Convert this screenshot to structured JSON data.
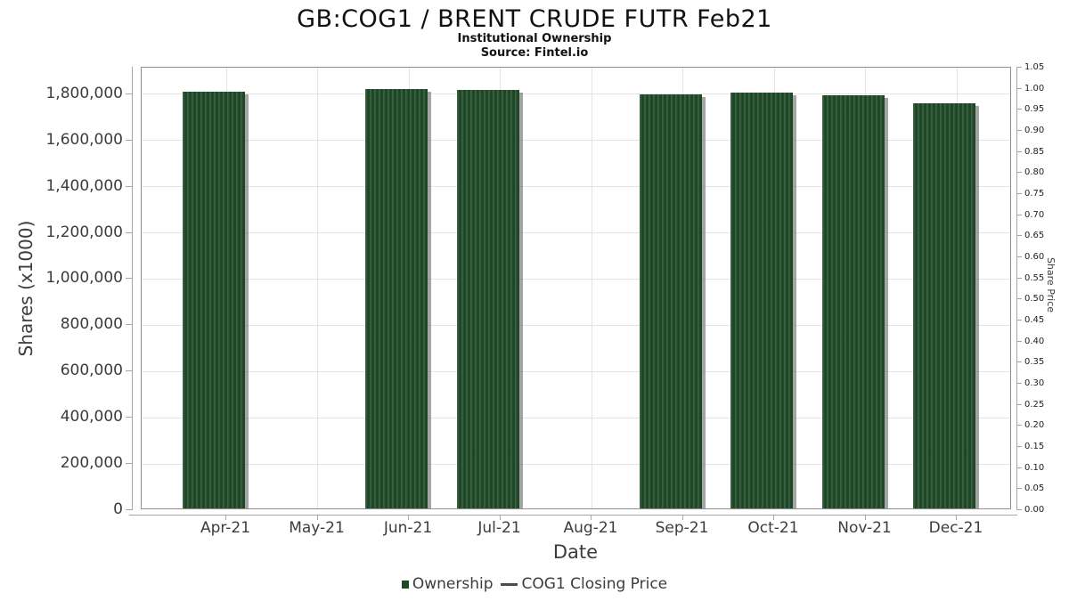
{
  "header": {
    "title": "GB:COG1 / BRENT CRUDE FUTR Feb21",
    "subtitle": "Institutional Ownership",
    "source": "Source: Fintel.io"
  },
  "chart_data": {
    "type": "bar",
    "title": "GB:COG1 / BRENT CRUDE FUTR Feb21",
    "subtitle": "Institutional Ownership",
    "source": "Source: Fintel.io",
    "xlabel": "Date",
    "ylabel_left": "Shares (x1000)",
    "ylabel_right": "Share Price",
    "categories": [
      "Apr-21",
      "May-21",
      "Jun-21",
      "Jul-21",
      "Aug-21",
      "Sep-21",
      "Oct-21",
      "Nov-21",
      "Dec-21"
    ],
    "series": [
      {
        "name": "Ownership",
        "type": "bar",
        "color": "#1e4927",
        "values": [
          1812000,
          null,
          1822000,
          1819000,
          null,
          1798000,
          1806000,
          1797000,
          1762000
        ]
      },
      {
        "name": "COG1 Closing Price",
        "type": "line",
        "color": "#4d4d4d",
        "values": []
      }
    ],
    "y_left": {
      "min": 0,
      "max": 1915000,
      "tick_values": [
        0,
        200000,
        400000,
        600000,
        800000,
        1000000,
        1200000,
        1400000,
        1600000,
        1800000
      ],
      "tick_labels": [
        "0",
        "200,000",
        "400,000",
        "600,000",
        "800,000",
        "1,000,000",
        "1,200,000",
        "1,400,000",
        "1,600,000",
        "1,800,000"
      ]
    },
    "y_right": {
      "min": 0,
      "max": 1.05,
      "tick_values": [
        0.0,
        0.05,
        0.1,
        0.15,
        0.2,
        0.25,
        0.3,
        0.35,
        0.4,
        0.45,
        0.5,
        0.55,
        0.6,
        0.65,
        0.7,
        0.75,
        0.8,
        0.85,
        0.9,
        0.95,
        1.0,
        1.05
      ],
      "tick_labels": [
        "0.00",
        "0.05",
        "0.10",
        "0.15",
        "0.20",
        "0.25",
        "0.30",
        "0.35",
        "0.40",
        "0.45",
        "0.50",
        "0.55",
        "0.60",
        "0.65",
        "0.70",
        "0.75",
        "0.80",
        "0.85",
        "0.90",
        "0.95",
        "1.00",
        "1.05"
      ]
    },
    "grid": true,
    "legend_position": "bottom"
  },
  "legend": {
    "items": [
      {
        "label": "Ownership",
        "marker": "square",
        "color": "#1e4927"
      },
      {
        "label": "COG1 Closing Price",
        "marker": "dash",
        "color": "#4d4d4d"
      }
    ]
  }
}
